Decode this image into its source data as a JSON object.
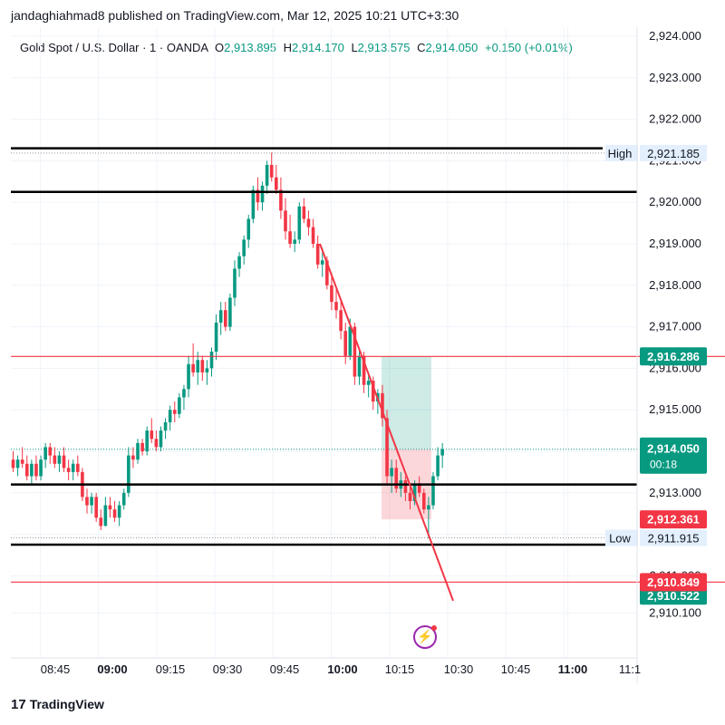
{
  "header": {
    "publisher_line": "jandaghiahmad8 published on TradingView.com, Mar 12, 2025 10:21 UTC+3:30",
    "symbol": "Gold Spot / U.S. Dollar · 1 · OANDA",
    "open_label": "O",
    "open": "2,913.895",
    "high_label": "H",
    "high": "2,914.170",
    "low_label": "L",
    "low": "2,913.575",
    "close_label": "C",
    "close": "2,914.050",
    "change": "+0.150 (+0.01%)"
  },
  "footer": {
    "logo_mark": "17",
    "logo_text": "TradingView"
  },
  "colors": {
    "up": "#089981",
    "down": "#f23645",
    "level_red": "#f23645",
    "level_black": "#000000",
    "price_tag": "#089981"
  },
  "chart_data": {
    "type": "candlestick",
    "title": "",
    "xlabel": "",
    "ylabel": "",
    "ylim": [
      2909.6,
      2924.2
    ],
    "y_ticks": [
      "2,924.000",
      "2,923.000",
      "2,922.000",
      "2,921.000",
      "2,920.000",
      "2,919.000",
      "2,918.000",
      "2,917.000",
      "2,916.000",
      "2,915.000",
      "2,914.000",
      "2,913.000",
      "2,912.000",
      "2,911.000",
      "2,910.100"
    ],
    "y_tick_values": [
      2924,
      2923,
      2922,
      2921,
      2920,
      2919,
      2918,
      2917,
      2916,
      2915,
      2914,
      2913,
      2912,
      2911,
      2910.1
    ],
    "x_ticks": [
      "08:45",
      "09:00",
      "09:15",
      "09:30",
      "09:45",
      "10:00",
      "10:15",
      "10:30",
      "10:45",
      "11:00",
      "11:1"
    ],
    "x_ticks_bold": [
      "09:00",
      "10:00",
      "11:00"
    ],
    "x_start": "08:38",
    "bar_minutes": 1,
    "candles": [
      [
        2913.8,
        2914.0,
        2913.5,
        2913.6
      ],
      [
        2913.6,
        2913.9,
        2913.4,
        2913.8
      ],
      [
        2913.8,
        2914.1,
        2913.6,
        2913.7
      ],
      [
        2913.7,
        2913.9,
        2913.3,
        2913.4
      ],
      [
        2913.4,
        2913.8,
        2913.2,
        2913.7
      ],
      [
        2913.7,
        2913.9,
        2913.3,
        2913.4
      ],
      [
        2913.4,
        2913.9,
        2913.3,
        2913.8
      ],
      [
        2913.8,
        2914.2,
        2913.6,
        2914.1
      ],
      [
        2914.1,
        2914.2,
        2913.7,
        2913.9
      ],
      [
        2913.9,
        2914.1,
        2913.6,
        2913.7
      ],
      [
        2913.7,
        2914.0,
        2913.5,
        2913.9
      ],
      [
        2913.9,
        2914.1,
        2913.5,
        2913.6
      ],
      [
        2913.6,
        2913.8,
        2913.3,
        2913.5
      ],
      [
        2913.5,
        2913.8,
        2913.3,
        2913.7
      ],
      [
        2913.7,
        2913.9,
        2913.4,
        2913.5
      ],
      [
        2913.5,
        2913.6,
        2912.8,
        2912.9
      ],
      [
        2912.9,
        2913.1,
        2912.5,
        2912.7
      ],
      [
        2912.7,
        2913.0,
        2912.5,
        2912.9
      ],
      [
        2912.9,
        2913.0,
        2912.3,
        2912.4
      ],
      [
        2912.4,
        2912.6,
        2912.1,
        2912.2
      ],
      [
        2912.2,
        2912.9,
        2912.2,
        2912.7
      ],
      [
        2912.7,
        2912.9,
        2912.4,
        2912.6
      ],
      [
        2912.6,
        2912.8,
        2912.3,
        2912.4
      ],
      [
        2912.4,
        2912.8,
        2912.2,
        2912.7
      ],
      [
        2912.7,
        2913.1,
        2912.6,
        2913.0
      ],
      [
        2913.0,
        2914.1,
        2912.9,
        2913.9
      ],
      [
        2913.9,
        2914.1,
        2913.6,
        2913.8
      ],
      [
        2913.8,
        2914.3,
        2913.7,
        2914.2
      ],
      [
        2914.2,
        2914.3,
        2913.9,
        2914.0
      ],
      [
        2914.0,
        2914.6,
        2913.9,
        2914.5
      ],
      [
        2914.5,
        2914.8,
        2914.2,
        2914.3
      ],
      [
        2914.3,
        2914.5,
        2914.0,
        2914.1
      ],
      [
        2914.1,
        2914.6,
        2914.0,
        2914.5
      ],
      [
        2914.5,
        2914.8,
        2914.3,
        2914.7
      ],
      [
        2914.7,
        2915.1,
        2914.5,
        2915.0
      ],
      [
        2915.0,
        2915.2,
        2914.7,
        2914.9
      ],
      [
        2914.9,
        2915.4,
        2914.8,
        2915.3
      ],
      [
        2915.3,
        2915.6,
        2915.0,
        2915.5
      ],
      [
        2915.5,
        2916.3,
        2915.3,
        2916.1
      ],
      [
        2916.1,
        2916.6,
        2915.8,
        2915.9
      ],
      [
        2915.9,
        2916.4,
        2915.6,
        2916.2
      ],
      [
        2916.2,
        2916.3,
        2915.7,
        2915.9
      ],
      [
        2915.9,
        2916.2,
        2915.6,
        2916.0
      ],
      [
        2916.0,
        2916.5,
        2915.8,
        2916.4
      ],
      [
        2916.4,
        2917.3,
        2916.2,
        2917.1
      ],
      [
        2917.1,
        2917.6,
        2916.8,
        2917.4
      ],
      [
        2917.4,
        2917.6,
        2916.9,
        2917.0
      ],
      [
        2917.0,
        2917.8,
        2916.9,
        2917.7
      ],
      [
        2917.7,
        2918.6,
        2917.5,
        2918.4
      ],
      [
        2918.4,
        2918.8,
        2918.2,
        2918.7
      ],
      [
        2918.7,
        2919.2,
        2918.5,
        2919.1
      ],
      [
        2919.1,
        2919.7,
        2918.9,
        2919.6
      ],
      [
        2919.6,
        2920.4,
        2919.5,
        2920.3
      ],
      [
        2920.3,
        2920.6,
        2919.8,
        2920.0
      ],
      [
        2920.0,
        2920.5,
        2919.8,
        2920.4
      ],
      [
        2920.4,
        2921.0,
        2920.2,
        2920.9
      ],
      [
        2920.9,
        2921.2,
        2920.5,
        2920.6
      ],
      [
        2920.6,
        2920.9,
        2920.2,
        2920.3
      ],
      [
        2920.3,
        2920.6,
        2919.6,
        2919.8
      ],
      [
        2919.8,
        2920.1,
        2919.1,
        2919.3
      ],
      [
        2919.3,
        2919.7,
        2918.9,
        2919.0
      ],
      [
        2919.0,
        2919.3,
        2918.8,
        2919.1
      ],
      [
        2919.1,
        2920.0,
        2919.0,
        2919.9
      ],
      [
        2919.9,
        2920.1,
        2919.5,
        2919.6
      ],
      [
        2919.6,
        2919.8,
        2919.2,
        2919.4
      ],
      [
        2919.4,
        2919.6,
        2918.9,
        2919.0
      ],
      [
        2919.0,
        2919.2,
        2918.4,
        2918.5
      ],
      [
        2918.5,
        2918.9,
        2918.2,
        2918.6
      ],
      [
        2918.6,
        2918.7,
        2917.9,
        2918.0
      ],
      [
        2918.0,
        2918.3,
        2917.4,
        2917.6
      ],
      [
        2917.6,
        2917.9,
        2917.2,
        2917.4
      ],
      [
        2917.4,
        2917.6,
        2916.7,
        2916.9
      ],
      [
        2916.9,
        2917.1,
        2916.1,
        2916.3
      ],
      [
        2916.3,
        2917.2,
        2916.2,
        2917.0
      ],
      [
        2917.0,
        2917.1,
        2915.6,
        2915.8
      ],
      [
        2915.8,
        2916.5,
        2915.6,
        2916.3
      ],
      [
        2916.3,
        2916.4,
        2915.4,
        2915.6
      ],
      [
        2915.6,
        2915.9,
        2915.3,
        2915.7
      ],
      [
        2915.7,
        2915.8,
        2915.0,
        2915.2
      ],
      [
        2915.2,
        2915.5,
        2914.9,
        2915.4
      ],
      [
        2915.4,
        2915.6,
        2914.6,
        2914.8
      ],
      [
        2914.8,
        2915.0,
        2913.2,
        2913.4
      ],
      [
        2913.4,
        2913.8,
        2913.0,
        2913.6
      ],
      [
        2913.6,
        2913.8,
        2913.0,
        2913.1
      ],
      [
        2913.1,
        2913.5,
        2912.9,
        2913.3
      ],
      [
        2913.3,
        2913.4,
        2912.8,
        2913.0
      ],
      [
        2913.0,
        2913.2,
        2912.6,
        2912.8
      ],
      [
        2912.8,
        2913.3,
        2912.7,
        2913.2
      ],
      [
        2913.2,
        2913.4,
        2912.9,
        2913.0
      ],
      [
        2913.0,
        2913.1,
        2912.5,
        2912.6
      ],
      [
        2912.6,
        2912.9,
        2911.9,
        2912.7
      ],
      [
        2912.7,
        2913.5,
        2912.6,
        2913.4
      ],
      [
        2913.4,
        2914.1,
        2913.3,
        2913.9
      ],
      [
        2913.9,
        2914.2,
        2913.6,
        2914.05
      ]
    ],
    "levels": [
      {
        "price": 2921.3,
        "color": "black"
      },
      {
        "price": 2920.25,
        "color": "black"
      },
      {
        "price": 2916.286,
        "color": "red"
      },
      {
        "price": 2913.2,
        "color": "black"
      },
      {
        "price": 2911.75,
        "color": "black"
      },
      {
        "price": 2910.849,
        "color": "red"
      }
    ],
    "trendline": {
      "from": [
        "09:55",
        2919.0
      ],
      "to": [
        "10:24",
        2910.4
      ]
    },
    "position": {
      "from": "10:13",
      "to": "10:23",
      "target": 2916.286,
      "entry": 2914.05,
      "stop": 2912.361
    },
    "price_labels": {
      "high": {
        "label": "High",
        "value": "2,921.185",
        "price": 2921.185
      },
      "low": {
        "label": "Low",
        "value": "2,911.915",
        "price": 2911.915
      },
      "target": {
        "value": "2,916.286",
        "price": 2916.286
      },
      "current": {
        "value": "2,914.050",
        "countdown": "00:18",
        "price": 2914.05
      },
      "stop": {
        "value": "2,912.361",
        "price": 2912.361
      },
      "lower_red": {
        "value": "2,910.849",
        "price": 2910.849
      },
      "lower_green": {
        "value": "2,910.522",
        "price": 2910.522
      }
    }
  }
}
